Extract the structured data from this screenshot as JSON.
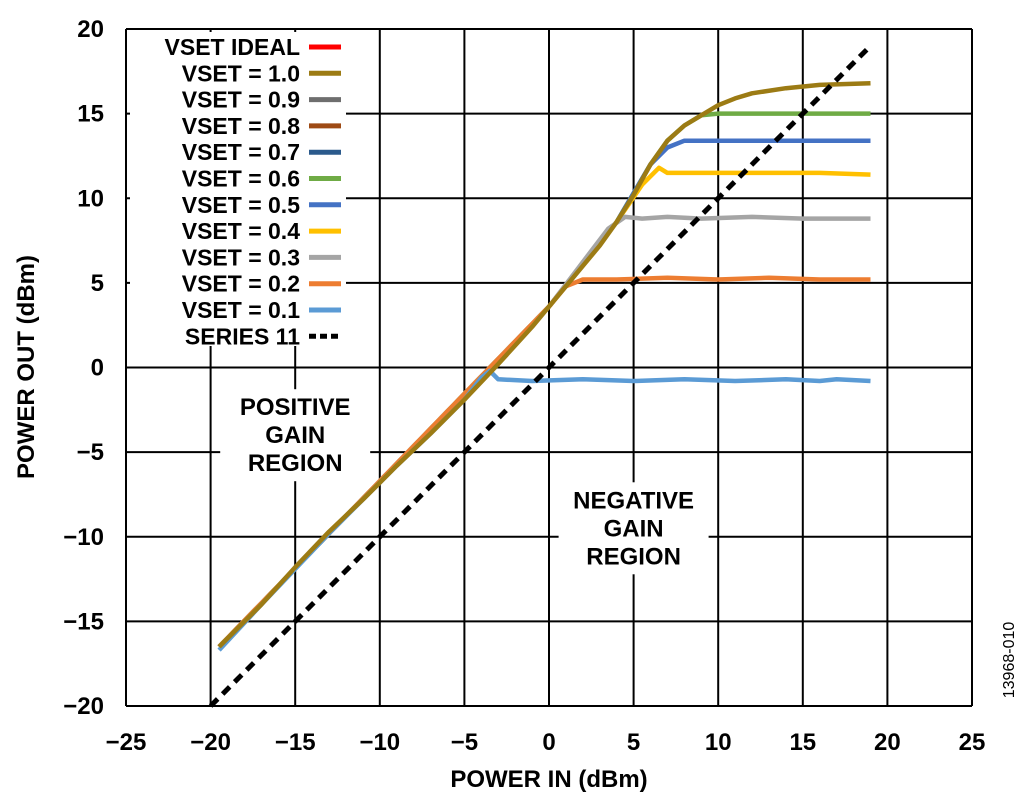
{
  "chart_data": {
    "type": "line",
    "title": "",
    "xlabel": "POWER IN (dBm)",
    "ylabel": "POWER OUT (dBm)",
    "xlim": [
      -25,
      25
    ],
    "ylim": [
      -20,
      20
    ],
    "xticks": [
      -25,
      -20,
      -15,
      -10,
      -5,
      0,
      5,
      10,
      15,
      20,
      25
    ],
    "yticks": [
      -20,
      -15,
      -10,
      -5,
      0,
      5,
      10,
      15,
      20
    ],
    "xtick_labels": [
      "−25",
      "−20",
      "−15",
      "−10",
      "−5",
      "0",
      "5",
      "10",
      "15",
      "20",
      "25"
    ],
    "ytick_labels": [
      "−20",
      "−15",
      "−10",
      "−5",
      "0",
      "5",
      "10",
      "15",
      "20"
    ],
    "grid": true,
    "legend_position": "top-left",
    "series": [
      {
        "name": "VSET IDEAL",
        "color": "#ff0000",
        "dash": false,
        "x": [],
        "y": []
      },
      {
        "name": "VSET = 1.0",
        "color": "#9c7b14",
        "dash": false,
        "x": [
          -19.5,
          -17,
          -15,
          -13,
          -11,
          -9,
          -7,
          -5,
          -3,
          -1,
          0,
          1,
          2,
          3,
          4,
          5,
          6,
          7,
          8,
          9,
          10,
          11,
          12,
          14,
          16,
          19
        ],
        "y": [
          -16.5,
          -14.0,
          -11.8,
          -9.7,
          -7.8,
          -5.8,
          -3.9,
          -1.9,
          0.2,
          2.4,
          3.6,
          4.8,
          6.0,
          7.2,
          8.6,
          10.2,
          12.0,
          13.4,
          14.3,
          14.9,
          15.5,
          15.9,
          16.2,
          16.5,
          16.7,
          16.8
        ]
      },
      {
        "name": "VSET = 0.9",
        "color": "#6e6e6e",
        "dash": false,
        "x": [],
        "y": []
      },
      {
        "name": "VSET = 0.8",
        "color": "#9e4a14",
        "dash": false,
        "x": [],
        "y": []
      },
      {
        "name": "VSET = 0.7",
        "color": "#2b5a8c",
        "dash": false,
        "x": [],
        "y": []
      },
      {
        "name": "VSET = 0.6",
        "color": "#6fab45",
        "dash": false,
        "x": [
          -19.5,
          0,
          4,
          6,
          7,
          8,
          9,
          10,
          12,
          15,
          19
        ],
        "y": [
          -16.5,
          3.6,
          8.6,
          12.0,
          13.4,
          14.3,
          14.9,
          15.0,
          15.0,
          15.0,
          15.0
        ]
      },
      {
        "name": "VSET = 0.5",
        "color": "#4472c4",
        "dash": false,
        "x": [
          -19.5,
          0,
          4,
          6,
          7,
          8,
          10,
          13,
          16,
          19
        ],
        "y": [
          -16.5,
          3.6,
          8.6,
          12.0,
          13.0,
          13.4,
          13.4,
          13.4,
          13.4,
          13.4
        ]
      },
      {
        "name": "VSET = 0.4",
        "color": "#ffc000",
        "dash": false,
        "x": [
          -19.5,
          0,
          4,
          5.5,
          6.5,
          7,
          8,
          10,
          13,
          16,
          19
        ],
        "y": [
          -16.5,
          3.6,
          8.6,
          10.8,
          11.8,
          11.5,
          11.5,
          11.5,
          11.5,
          11.5,
          11.4
        ]
      },
      {
        "name": "VSET = 0.3",
        "color": "#a5a5a5",
        "dash": false,
        "x": [
          -19.5,
          0,
          3.5,
          4.5,
          5.5,
          7,
          9,
          12,
          15,
          19
        ],
        "y": [
          -16.5,
          3.6,
          8.2,
          8.9,
          8.8,
          8.9,
          8.8,
          8.9,
          8.8,
          8.8
        ]
      },
      {
        "name": "VSET = 0.2",
        "color": "#ed7d31",
        "dash": false,
        "x": [
          -19.5,
          0,
          1,
          2,
          4,
          7,
          10,
          13,
          16,
          19
        ],
        "y": [
          -16.5,
          3.6,
          4.8,
          5.2,
          5.2,
          5.3,
          5.2,
          5.3,
          5.2,
          5.2
        ]
      },
      {
        "name": "VSET = 0.1",
        "color": "#5b9bd5",
        "dash": false,
        "x": [
          -19.5,
          -17,
          -15,
          -13,
          -11,
          -9,
          -7,
          -5,
          -4,
          -3.5,
          -3,
          -1,
          2,
          5,
          8,
          11,
          14,
          16,
          17,
          19
        ],
        "y": [
          -16.7,
          -14.0,
          -11.9,
          -9.8,
          -7.8,
          -5.8,
          -3.9,
          -1.9,
          -0.6,
          -0.2,
          -0.7,
          -0.8,
          -0.7,
          -0.8,
          -0.7,
          -0.8,
          -0.7,
          -0.8,
          -0.7,
          -0.8
        ]
      },
      {
        "name": "SERIES 11",
        "color": "#000000",
        "dash": true,
        "x": [
          -20,
          19
        ],
        "y": [
          -20,
          19
        ]
      }
    ],
    "annotations": [
      {
        "lines": [
          "POSITIVE",
          "GAIN",
          "REGION"
        ],
        "x": -15,
        "y": -4
      },
      {
        "lines": [
          "NEGATIVE",
          "GAIN",
          "REGION"
        ],
        "x": 5,
        "y": -9.5
      }
    ],
    "figure_id": "13968-010"
  }
}
